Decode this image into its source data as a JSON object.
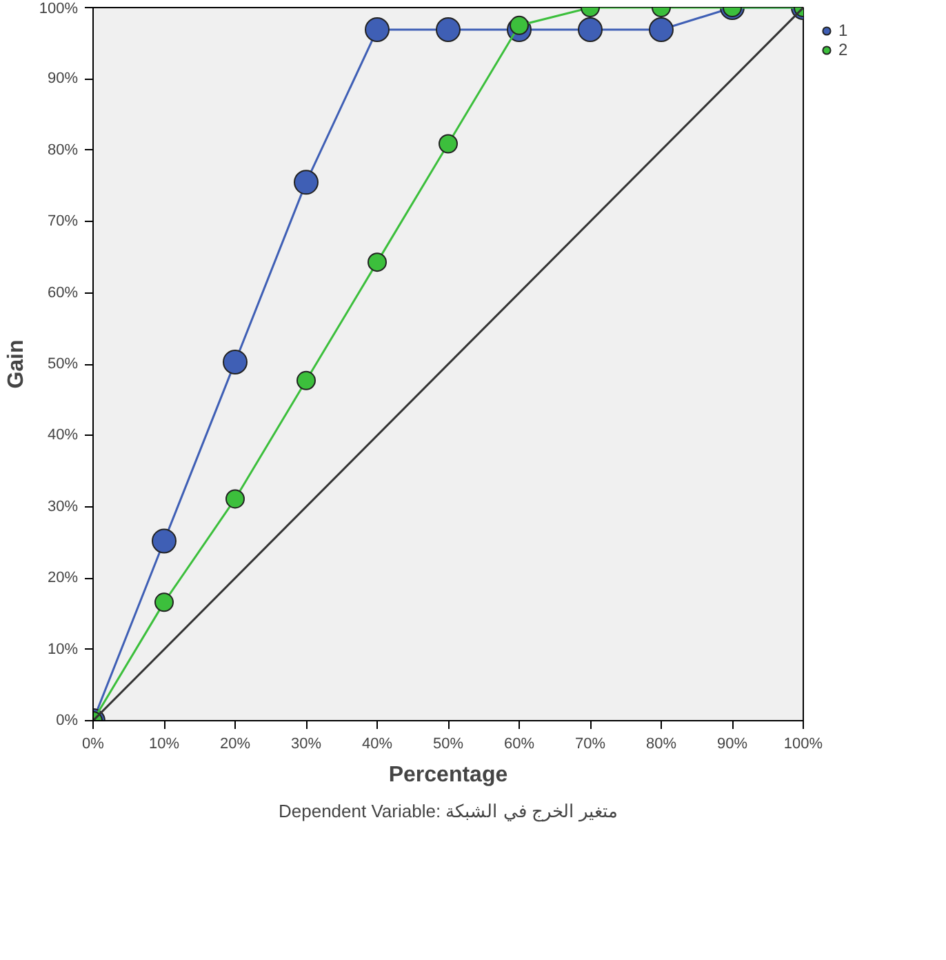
{
  "chart_data": {
    "type": "line",
    "xlabel": "Percentage",
    "ylabel": "Gain",
    "x": [
      0,
      10,
      20,
      30,
      40,
      50,
      60,
      70,
      80,
      90,
      100
    ],
    "series": [
      {
        "name": "1",
        "color": "#3f5fb5",
        "values": [
          0,
          25.2,
          50.3,
          75.5,
          96.9,
          96.9,
          96.9,
          96.9,
          96.9,
          100,
          100
        ]
      },
      {
        "name": "2",
        "color": "#3cbf3c",
        "values": [
          0,
          16.6,
          31.1,
          47.7,
          64.3,
          80.9,
          97.5,
          100,
          100,
          100,
          100
        ]
      },
      {
        "color": "#333333",
        "type": "line",
        "marker": "none",
        "x": [
          0,
          100
        ],
        "values": [
          0,
          100
        ]
      }
    ],
    "xlim": [
      0,
      100
    ],
    "ylim": [
      0,
      100
    ],
    "xticks": [
      {
        "value": 0,
        "label": "0%"
      },
      {
        "value": 10,
        "label": "10%"
      },
      {
        "value": 20,
        "label": "20%"
      },
      {
        "value": 30,
        "label": "30%"
      },
      {
        "value": 40,
        "label": "40%"
      },
      {
        "value": 50,
        "label": "50%"
      },
      {
        "value": 60,
        "label": "60%"
      },
      {
        "value": 70,
        "label": "70%"
      },
      {
        "value": 80,
        "label": "80%"
      },
      {
        "value": 90,
        "label": "90%"
      },
      {
        "value": 100,
        "label": "100%"
      }
    ],
    "yticks": [
      {
        "value": 0,
        "label": "0%"
      },
      {
        "value": 10,
        "label": "10%"
      },
      {
        "value": 20,
        "label": "20%"
      },
      {
        "value": 30,
        "label": "30%"
      },
      {
        "value": 40,
        "label": "40%"
      },
      {
        "value": 50,
        "label": "50%"
      },
      {
        "value": 60,
        "label": "60%"
      },
      {
        "value": 70,
        "label": "70%"
      },
      {
        "value": 80,
        "label": "80%"
      },
      {
        "value": 90,
        "label": "90%"
      },
      {
        "value": 100,
        "label": "100%"
      }
    ],
    "grid": false,
    "legend": "top right",
    "marker": "circle",
    "annotations": [
      "Dependent Variable: متغير الخرج في الشبكة"
    ]
  }
}
